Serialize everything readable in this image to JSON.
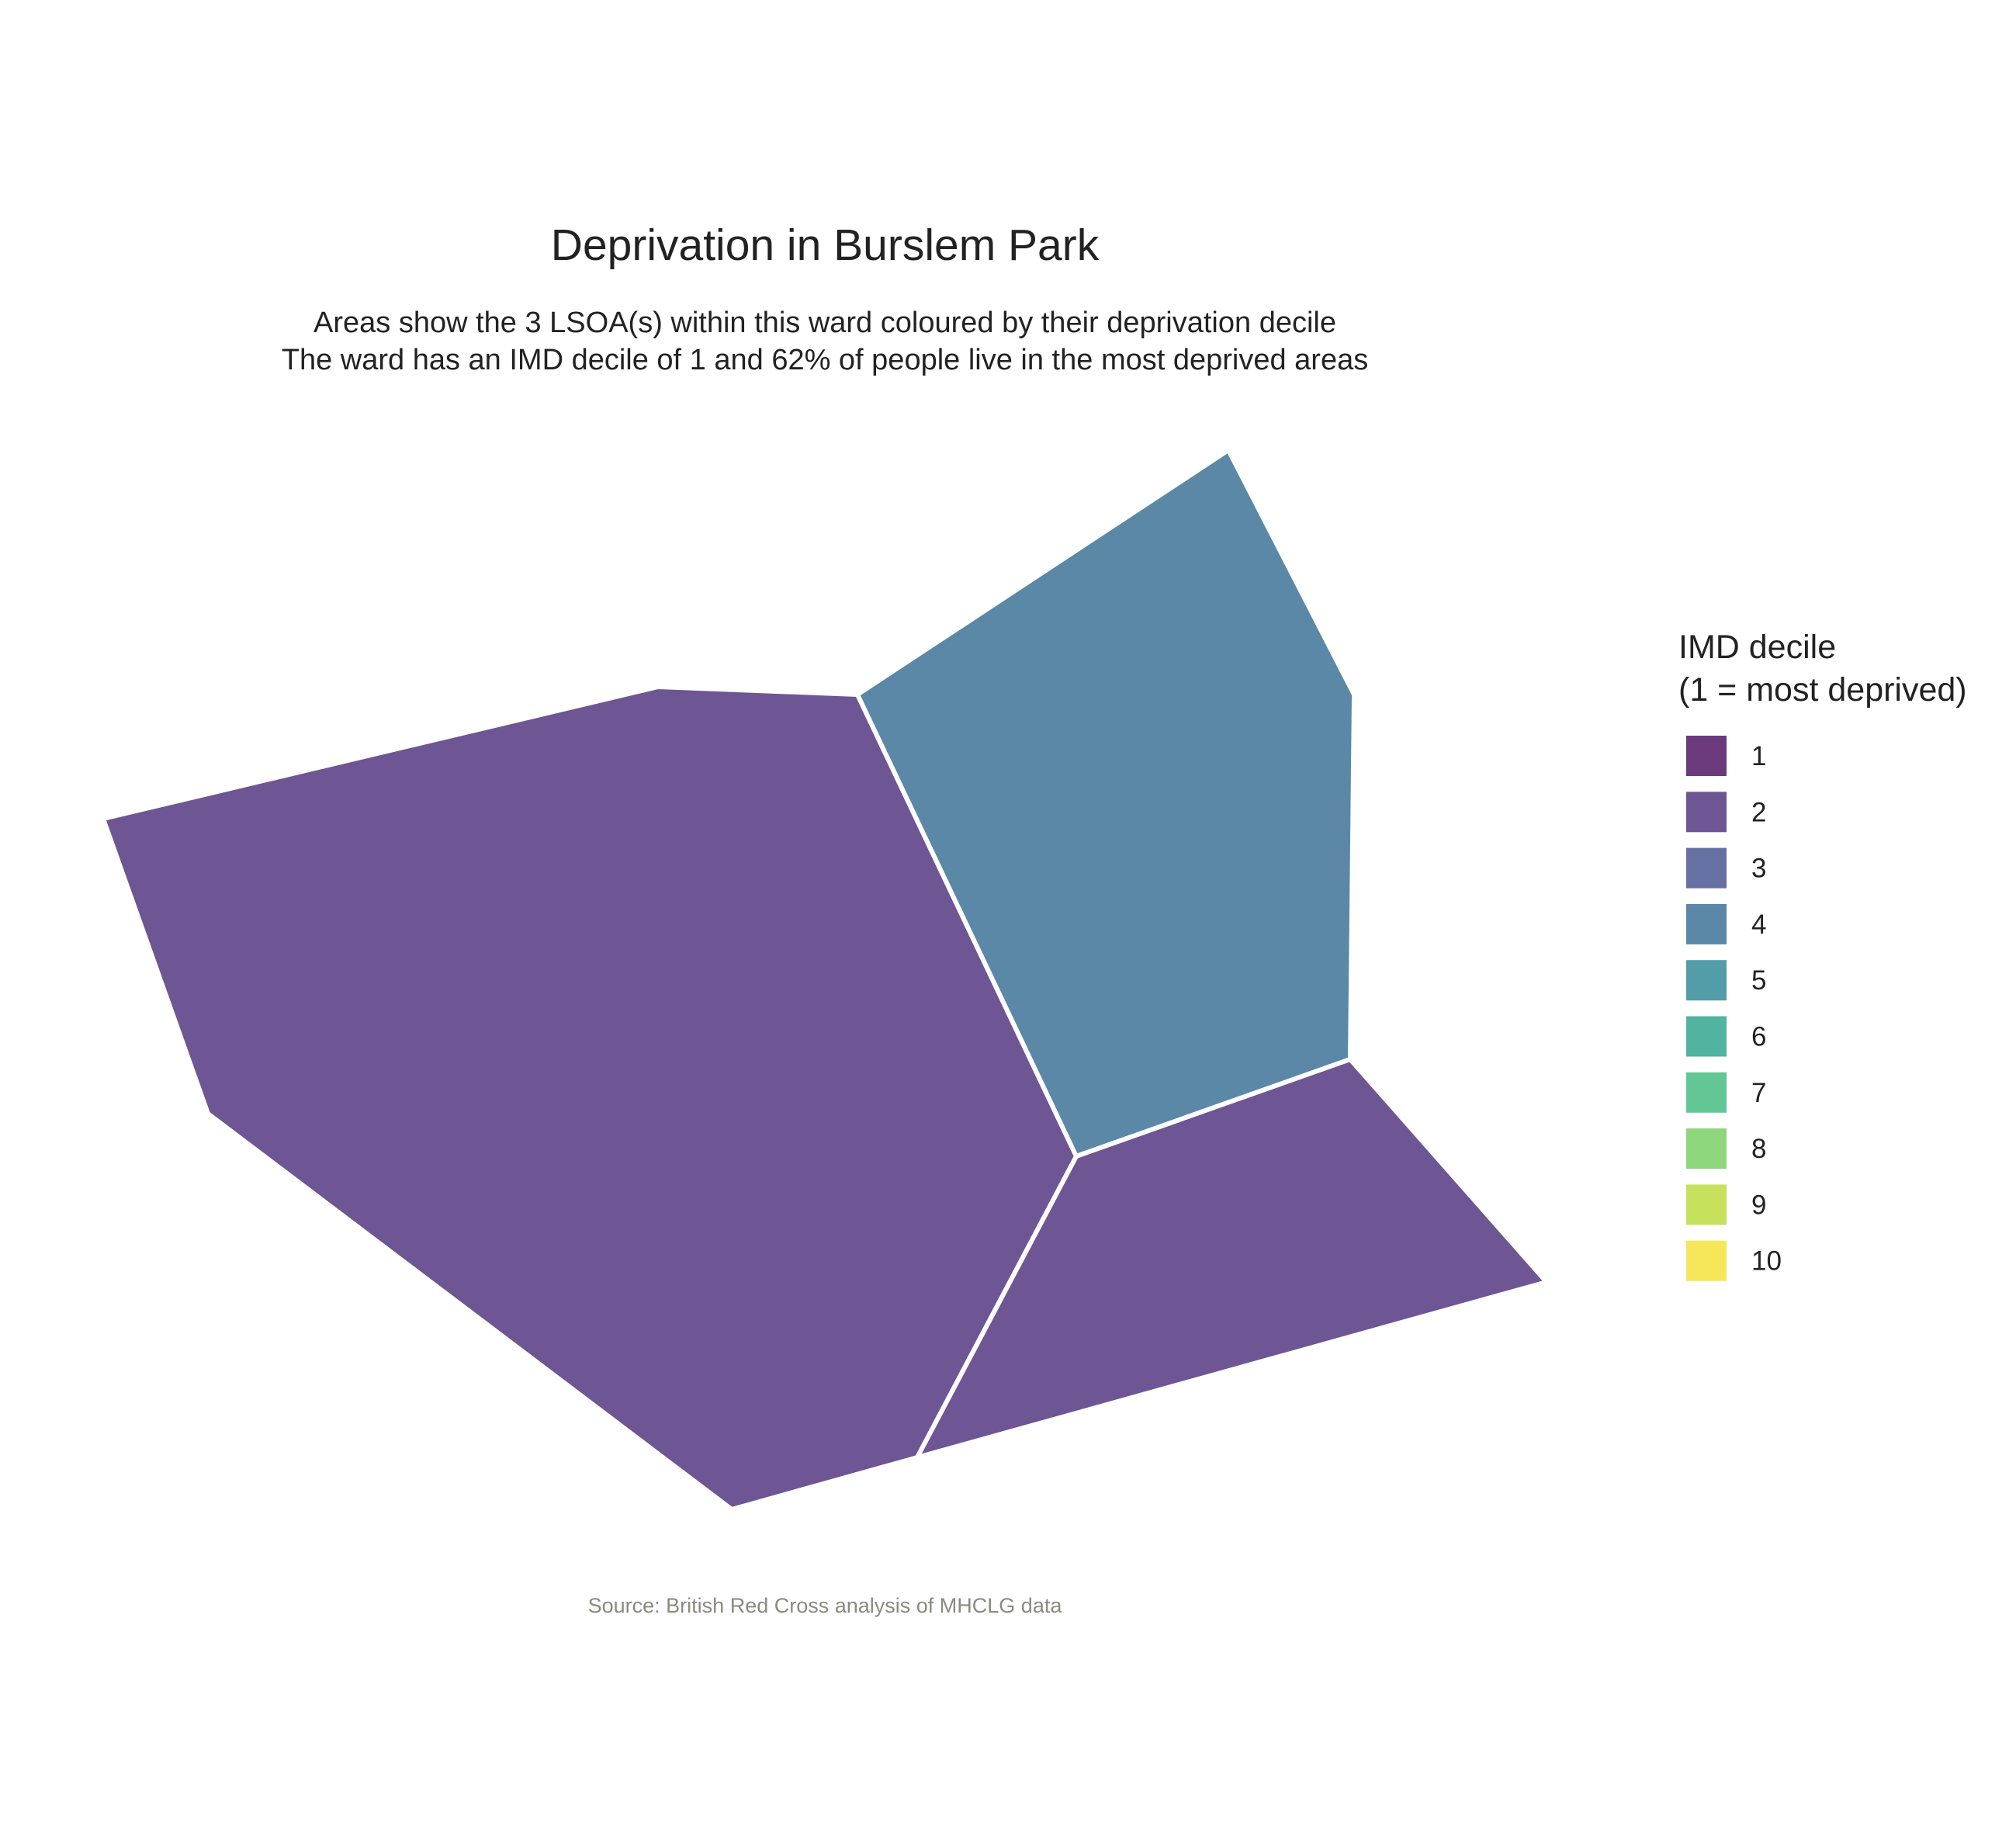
{
  "title": "Deprivation in Burslem Park",
  "subtitle": {
    "line1": "Areas show the 3 LSOA(s) within this ward coloured by their deprivation decile",
    "line2": "The ward has an IMD decile of 1 and 62% of people live in the most deprived areas"
  },
  "caption": "Source: British Red Cross analysis of MHCLG data",
  "legend": {
    "title_line1": "IMD decile",
    "title_line2": "(1 = most deprived)",
    "items": [
      {
        "label": "1",
        "color": "#6a3a7c"
      },
      {
        "label": "2",
        "color": "#6e5593"
      },
      {
        "label": "3",
        "color": "#6670a2"
      },
      {
        "label": "4",
        "color": "#5a88a6"
      },
      {
        "label": "5",
        "color": "#529da8"
      },
      {
        "label": "6",
        "color": "#52b3a0"
      },
      {
        "label": "7",
        "color": "#62c795"
      },
      {
        "label": "8",
        "color": "#8fd77c"
      },
      {
        "label": "9",
        "color": "#c6e25d"
      },
      {
        "label": "10",
        "color": "#f6e75a"
      }
    ]
  },
  "chart_data": {
    "type": "choropleth",
    "areas": [
      {
        "id": "lsoa-west",
        "decile": 2
      },
      {
        "id": "lsoa-northeast",
        "decile": 4
      },
      {
        "id": "lsoa-southeast",
        "decile": 2
      }
    ]
  }
}
